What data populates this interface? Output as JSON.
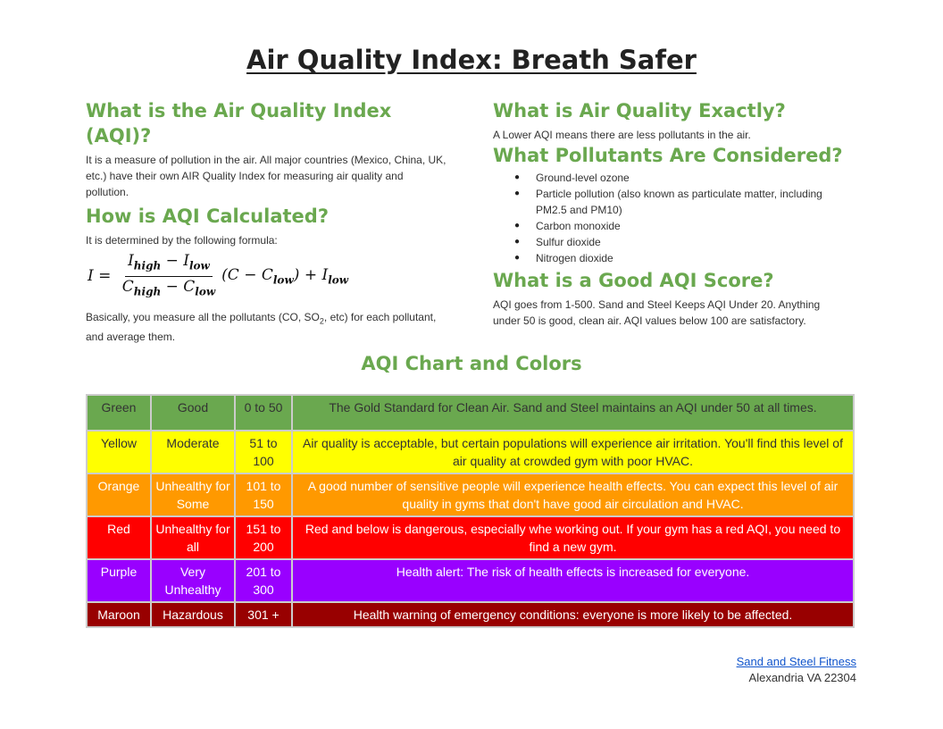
{
  "title": "Air Quality Index: Breath Safer",
  "left": {
    "h1": "What is the Air Quality Index (AQI)?",
    "p1": "It is a measure of pollution in the air.  All major countries (Mexico, China, UK, etc.) have their own AIR Quality Index for measuring air quality and pollution.",
    "h2": "How is AQI Calculated?",
    "p2": "It is determined by the following formula:",
    "p3_before": "Basically, you measure all the pollutants (CO, SO",
    "p3_sub": "2",
    "p3_after": ", etc) for each pollutant, and average them."
  },
  "right": {
    "h1": "What is Air Quality Exactly?",
    "p1": "A Lower AQI means there are less pollutants in the air.",
    "h2": "What Pollutants Are Considered?",
    "pollutants": [
      "Ground-level ozone",
      "Particle pollution (also known as particulate matter, including PM2.5 and PM10)",
      "Carbon monoxide",
      "Sulfur dioxide",
      "Nitrogen dioxide"
    ],
    "h3": "What is a Good AQI Score?",
    "p2": "AQI goes from 1-500.  Sand and Steel Keeps AQI Under 20.  Anything under 50 is good, clean air.  AQI values below 100 are satisfactory."
  },
  "chart_title": "AQI Chart and Colors",
  "rows": [
    {
      "color": "Green",
      "level": "Good",
      "range": "0 to 50",
      "desc": "The Gold Standard for Clean Air. Sand and Steel maintains an AQI under 50 at all times.",
      "bg": "#6aa84f",
      "fg": "#333333"
    },
    {
      "color": "Yellow",
      "level": "Moderate",
      "range": "51 to 100",
      "desc": "Air quality is acceptable, but certain populations will experience air irritation. You'll find this level of air quality at crowded gym with poor HVAC.",
      "bg": "#ffff00",
      "fg": "#333333"
    },
    {
      "color": "Orange",
      "level": "Unhealthy for Some",
      "range": "101 to 150",
      "desc": "A good number of sensitive people will experience health effects. You can expect this level of air quality in gyms that don't have good air circulation and HVAC.",
      "bg": "#ff9900",
      "fg": "#ffffff"
    },
    {
      "color": "Red",
      "level": "Unhealthy for all",
      "range": "151 to 200",
      "desc": "Red and below is dangerous, especially whe working out. If your gym has a red AQI, you need to find a new gym.",
      "bg": "#ff0000",
      "fg": "#ffffff"
    },
    {
      "color": "Purple",
      "level": "Very Unhealthy",
      "range": "201 to 300",
      "desc": "Health alert: The risk of health effects is increased for everyone.",
      "bg": "#9900ff",
      "fg": "#ffffff"
    },
    {
      "color": "Maroon",
      "level": "Hazardous",
      "range": "301 +",
      "desc": "Health warning of emergency conditions: everyone is more likely to be affected.",
      "bg": "#980000",
      "fg": "#ffffff"
    }
  ],
  "footer": {
    "link": "Sand and Steel Fitness",
    "address": "Alexandria VA 22304"
  }
}
